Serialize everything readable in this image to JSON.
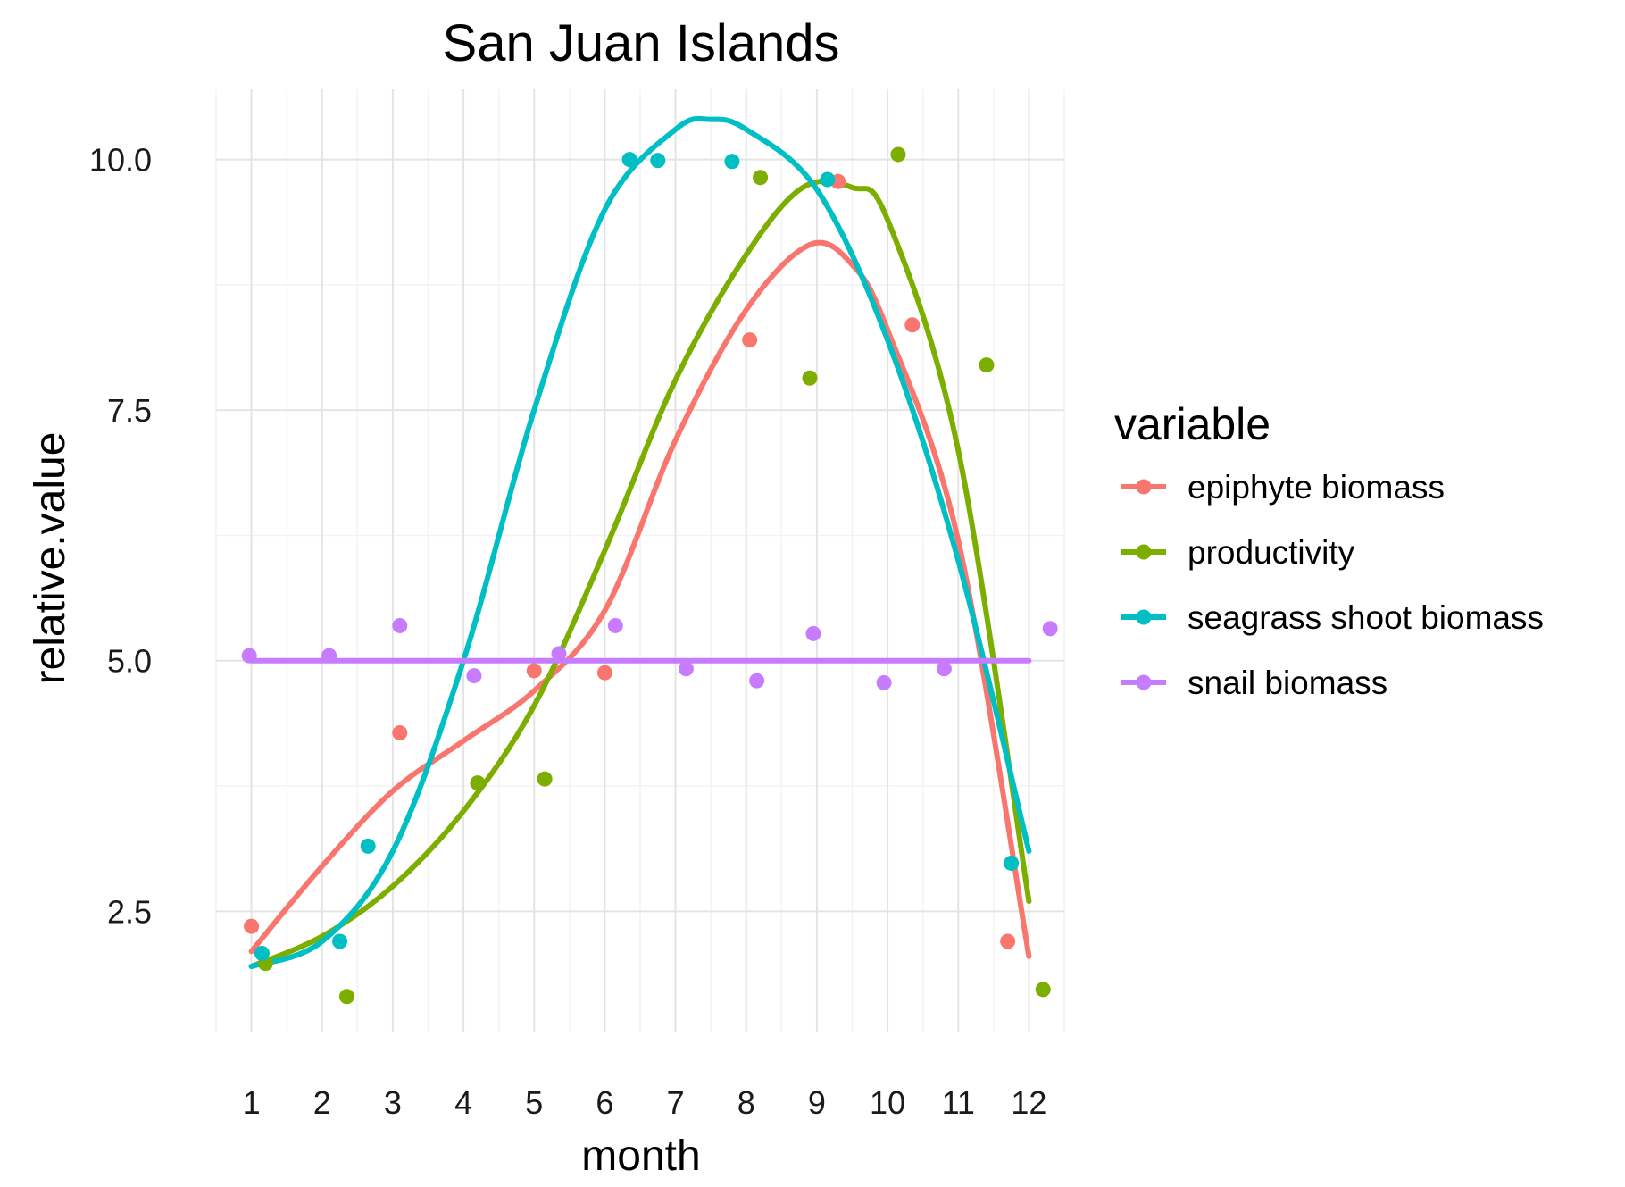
{
  "chart_data": {
    "type": "scatter",
    "title": "San Juan Islands",
    "xlabel": "month",
    "ylabel": "relative.value",
    "xlim": [
      0.5,
      12.5
    ],
    "ylim": [
      1.3,
      10.7
    ],
    "x_ticks": [
      "1",
      "2",
      "3",
      "4",
      "5",
      "6",
      "7",
      "8",
      "9",
      "10",
      "11",
      "12"
    ],
    "y_ticks": [
      "2.5",
      "5.0",
      "7.5",
      "10.0"
    ],
    "grid": true,
    "legend_title": "variable",
    "legend_position": "right",
    "smooth_lines": true,
    "series": [
      {
        "name": "epiphyte biomass",
        "color": "#f8766d",
        "points": [
          [
            1.0,
            2.35
          ],
          [
            3.1,
            4.28
          ],
          [
            5.0,
            4.9
          ],
          [
            6.0,
            4.88
          ],
          [
            8.05,
            8.2
          ],
          [
            9.3,
            9.78
          ],
          [
            10.35,
            8.35
          ],
          [
            11.7,
            2.2
          ]
        ],
        "smooth": [
          [
            1.0,
            2.1
          ],
          [
            2.0,
            2.95
          ],
          [
            3.0,
            3.7
          ],
          [
            4.0,
            4.2
          ],
          [
            5.0,
            4.7
          ],
          [
            6.0,
            5.5
          ],
          [
            7.0,
            7.2
          ],
          [
            8.0,
            8.5
          ],
          [
            8.9,
            9.15
          ],
          [
            9.5,
            8.95
          ],
          [
            10.0,
            8.3
          ],
          [
            11.0,
            6.2
          ],
          [
            12.0,
            2.05
          ]
        ]
      },
      {
        "name": "productivity",
        "color": "#7cae00",
        "points": [
          [
            1.2,
            1.98
          ],
          [
            2.35,
            1.65
          ],
          [
            4.2,
            3.78
          ],
          [
            5.15,
            3.82
          ],
          [
            8.2,
            9.82
          ],
          [
            8.9,
            7.82
          ],
          [
            10.15,
            10.05
          ],
          [
            11.4,
            7.95
          ],
          [
            12.2,
            1.72
          ]
        ],
        "smooth": [
          [
            1.0,
            1.95
          ],
          [
            2.0,
            2.25
          ],
          [
            3.0,
            2.75
          ],
          [
            4.0,
            3.5
          ],
          [
            5.0,
            4.55
          ],
          [
            6.0,
            6.1
          ],
          [
            7.0,
            7.8
          ],
          [
            8.0,
            9.05
          ],
          [
            8.8,
            9.72
          ],
          [
            9.5,
            9.72
          ],
          [
            10.0,
            9.4
          ],
          [
            11.0,
            7.1
          ],
          [
            12.0,
            2.6
          ]
        ]
      },
      {
        "name": "seagrass shoot biomass",
        "color": "#00bfc4",
        "points": [
          [
            1.15,
            2.08
          ],
          [
            2.25,
            2.2
          ],
          [
            2.65,
            3.15
          ],
          [
            6.35,
            10.0
          ],
          [
            6.75,
            9.99
          ],
          [
            7.8,
            9.98
          ],
          [
            9.15,
            9.8
          ],
          [
            11.75,
            2.98
          ]
        ],
        "smooth": [
          [
            1.0,
            1.95
          ],
          [
            2.0,
            2.2
          ],
          [
            3.0,
            3.1
          ],
          [
            4.0,
            5.0
          ],
          [
            5.0,
            7.5
          ],
          [
            6.0,
            9.5
          ],
          [
            7.0,
            10.3
          ],
          [
            7.5,
            10.4
          ],
          [
            8.0,
            10.3
          ],
          [
            9.0,
            9.7
          ],
          [
            10.0,
            8.2
          ],
          [
            11.0,
            6.0
          ],
          [
            12.0,
            3.1
          ]
        ]
      },
      {
        "name": "snail biomass",
        "color": "#c77cff",
        "points": [
          [
            0.97,
            5.05
          ],
          [
            2.1,
            5.05
          ],
          [
            3.1,
            5.35
          ],
          [
            4.15,
            4.85
          ],
          [
            5.35,
            5.07
          ],
          [
            6.15,
            5.35
          ],
          [
            7.15,
            4.92
          ],
          [
            8.15,
            4.8
          ],
          [
            8.95,
            5.27
          ],
          [
            9.95,
            4.78
          ],
          [
            10.8,
            4.92
          ],
          [
            12.3,
            5.32
          ]
        ],
        "smooth": [
          [
            1.0,
            5.0
          ],
          [
            12.0,
            5.0
          ]
        ]
      }
    ]
  }
}
